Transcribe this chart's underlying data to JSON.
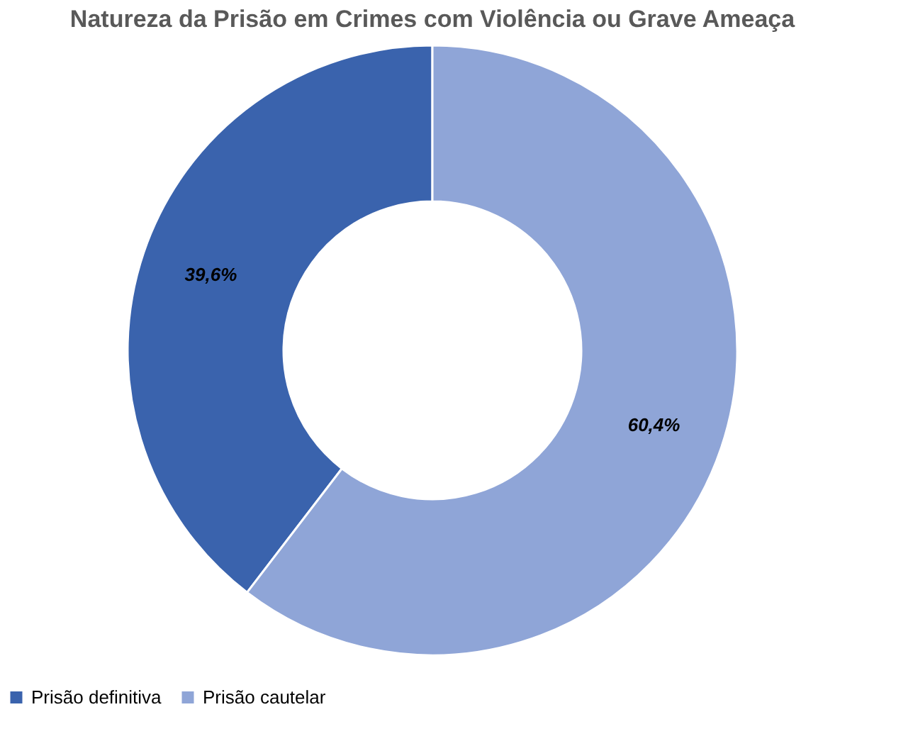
{
  "chart_data": {
    "type": "donut",
    "title": "Natureza da Prisão em Crimes com Violência ou Grave Ameaça",
    "categories": [
      "Prisão definitiva",
      "Prisão cautelar"
    ],
    "values": [
      39.6,
      60.4
    ],
    "colors": [
      "#3a63ad",
      "#8fa5d7"
    ],
    "value_labels": [
      "39,6%",
      "60,4%"
    ],
    "legend": "bottom"
  }
}
